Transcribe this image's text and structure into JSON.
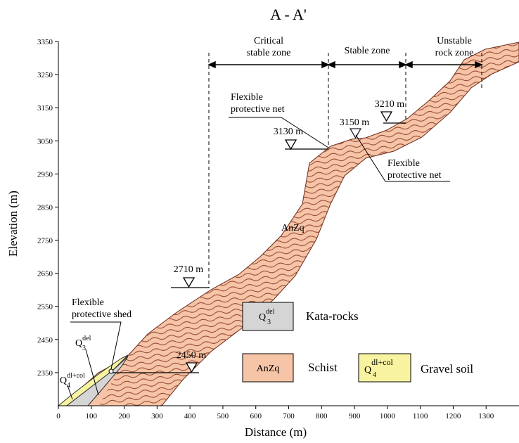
{
  "title": "A - A'",
  "axes": {
    "x_label": "Distance (m)",
    "y_label": "Elevation (m)",
    "xlim": [
      0,
      1400
    ],
    "ylim": [
      2250,
      3350
    ],
    "xticks": [
      0,
      100,
      200,
      300,
      400,
      500,
      600,
      700,
      800,
      900,
      1000,
      1100,
      1200,
      1300
    ],
    "yticks": [
      2350,
      2450,
      2550,
      2650,
      2750,
      2850,
      2950,
      3050,
      3150,
      3250,
      3350
    ]
  },
  "zones": [
    {
      "lines": [
        "Critical",
        "stable zone"
      ]
    },
    {
      "lines": [
        "Stable zone"
      ]
    },
    {
      "lines": [
        "Unstable",
        "rock zone"
      ]
    }
  ],
  "water_levels": [
    "2710 m",
    "2450 m",
    "3130 m",
    "3150 m",
    "3210 m"
  ],
  "callouts": [
    {
      "lines": [
        "Flexible",
        "protective net"
      ]
    },
    {
      "lines": [
        "Flexible",
        "protective net"
      ]
    },
    {
      "lines": [
        "Flexible",
        "protective shed"
      ]
    }
  ],
  "unit_labels": {
    "anzq": "AnZq",
    "q3": {
      "base": "Q",
      "sub": "3",
      "sup": "del"
    },
    "q4": {
      "base": "Q",
      "sub": "4",
      "sup": "dl+col"
    }
  },
  "legend": [
    {
      "symbol": {
        "base": "Q",
        "sub": "3",
        "sup": "del"
      },
      "label": "Kata-rocks"
    },
    {
      "symbol": "AnZq",
      "label": "Schist"
    },
    {
      "symbol": {
        "base": "Q",
        "sub": "4",
        "sup": "dl+col"
      },
      "label": "Gravel soil"
    }
  ]
}
